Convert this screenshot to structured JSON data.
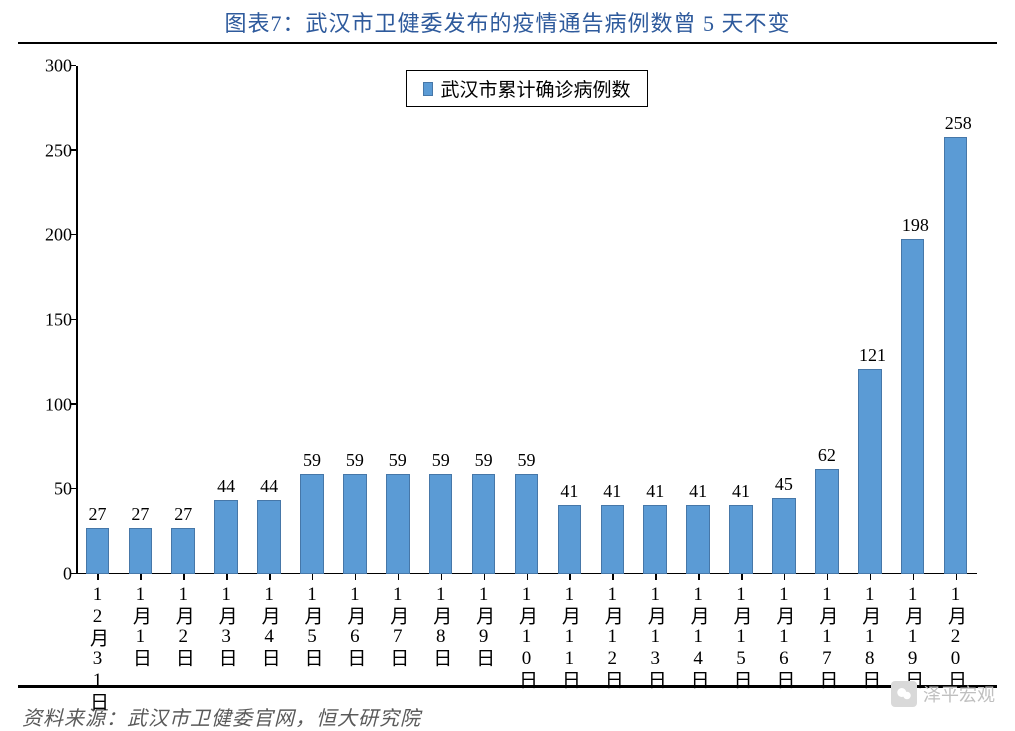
{
  "title": "图表7：武汉市卫健委发布的疫情通告病例数曾 5 天不变",
  "source": "资料来源：武汉市卫健委官网，恒大研究院",
  "watermark": "泽平宏观",
  "chart": {
    "type": "bar",
    "legend_label": "武汉市累计确诊病例数",
    "categories": [
      "12月31日",
      "1月1日",
      "1月2日",
      "1月3日",
      "1月4日",
      "1月5日",
      "1月6日",
      "1月7日",
      "1月8日",
      "1月9日",
      "1月10日",
      "1月11日",
      "1月12日",
      "1月13日",
      "1月14日",
      "1月15日",
      "1月16日",
      "1月17日",
      "1月18日",
      "1月19日",
      "1月20日"
    ],
    "values": [
      27,
      27,
      27,
      44,
      44,
      59,
      59,
      59,
      59,
      59,
      59,
      41,
      41,
      41,
      41,
      41,
      45,
      62,
      121,
      198,
      258
    ],
    "ylim": [
      0,
      300
    ],
    "ytick_step": 50,
    "bar_color": "#5b9bd5",
    "bar_border_color": "#4677a8",
    "axis_color": "#000000",
    "label_color": "#000000",
    "title_color": "#2e5a9c",
    "background_color": "#ffffff",
    "bar_width_ratio": 0.55,
    "title_fontsize": 22,
    "axis_fontsize": 18,
    "legend_fontsize": 19
  }
}
